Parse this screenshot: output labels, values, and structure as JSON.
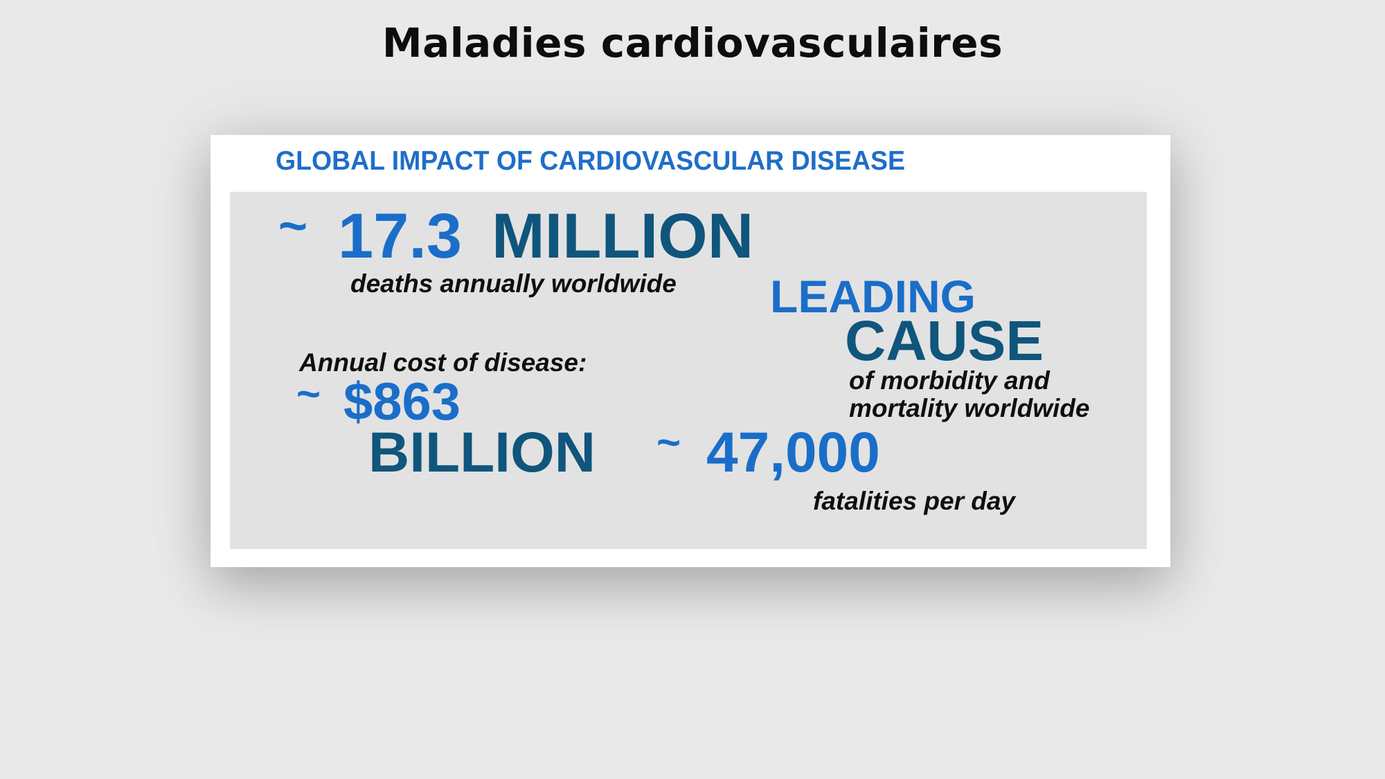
{
  "slide": {
    "title": "Maladies cardiovasculaires"
  },
  "card": {
    "heading": "GLOBAL IMPACT OF CARDIOVASCULAR DISEASE",
    "deaths": {
      "tilde": "~",
      "value": "17.3",
      "unit": "MILLION",
      "caption": "deaths annually worldwide"
    },
    "leading": {
      "line1": "LEADING",
      "line2": "CAUSE",
      "caption1": "of morbidity and",
      "caption2": "mortality worldwide"
    },
    "cost": {
      "label": "Annual cost of disease:",
      "tilde": "~",
      "value": "$863",
      "unit": "BILLION"
    },
    "fatalities": {
      "tilde": "~",
      "value": "47,000",
      "caption": "fatalities per day"
    }
  },
  "colors": {
    "background": "#e9e9e9",
    "card": "#ffffff",
    "panel": "#e2e2e2",
    "accent_blue": "#1a6ec9",
    "navy": "#0f557c"
  }
}
